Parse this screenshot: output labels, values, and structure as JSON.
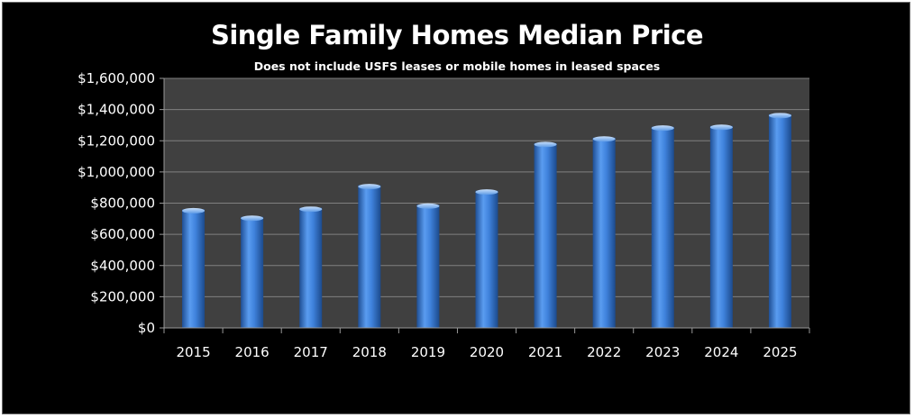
{
  "chart_data": {
    "type": "bar",
    "title": "Single Family Homes Median Price",
    "subtitle": "Does not include USFS leases or mobile homes in leased spaces",
    "categories": [
      "2015",
      "2016",
      "2017",
      "2018",
      "2019",
      "2020",
      "2021",
      "2022",
      "2023",
      "2024",
      "2025"
    ],
    "series": [
      {
        "values": [
          760000,
          712000,
          770000,
          915000,
          790000,
          880000,
          1185000,
          1220000,
          1290000,
          1295000,
          1370000
        ]
      }
    ],
    "ylim": [
      0,
      1600000
    ],
    "yticks": [
      0,
      200000,
      400000,
      600000,
      800000,
      1000000,
      1200000,
      1400000,
      1600000
    ],
    "ytick_labels": [
      "$0",
      "$200,000",
      "$400,000",
      "$600,000",
      "$800,000",
      "$1,000,000",
      "$1,200,000",
      "$1,400,000",
      "$1,600,000"
    ],
    "xlabel": "",
    "ylabel": "",
    "grid": true,
    "legend": "none",
    "colors": {
      "background": "#000000",
      "plot_area": "#404040",
      "gridline": "#808080",
      "bar": "#3d7fd6",
      "text": "#ffffff"
    }
  }
}
